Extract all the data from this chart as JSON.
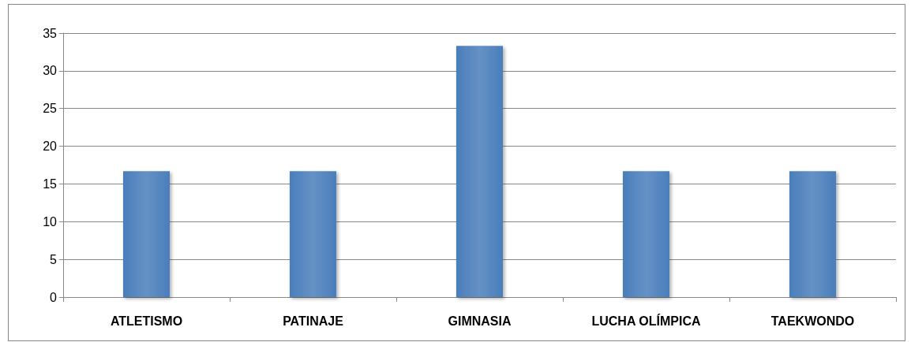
{
  "chart_data": {
    "type": "bar",
    "categories": [
      "ATLETISMO",
      "PATINAJE",
      "GIMNASIA",
      "LUCHA OLÍMPICA",
      "TAEKWONDO"
    ],
    "values": [
      16.7,
      16.7,
      33.3,
      16.7,
      16.7
    ],
    "color": "#4a7ebb",
    "ylim": [
      0,
      35
    ],
    "yticks": [
      0,
      5,
      10,
      15,
      20,
      25,
      30,
      35
    ],
    "grid": "y"
  }
}
